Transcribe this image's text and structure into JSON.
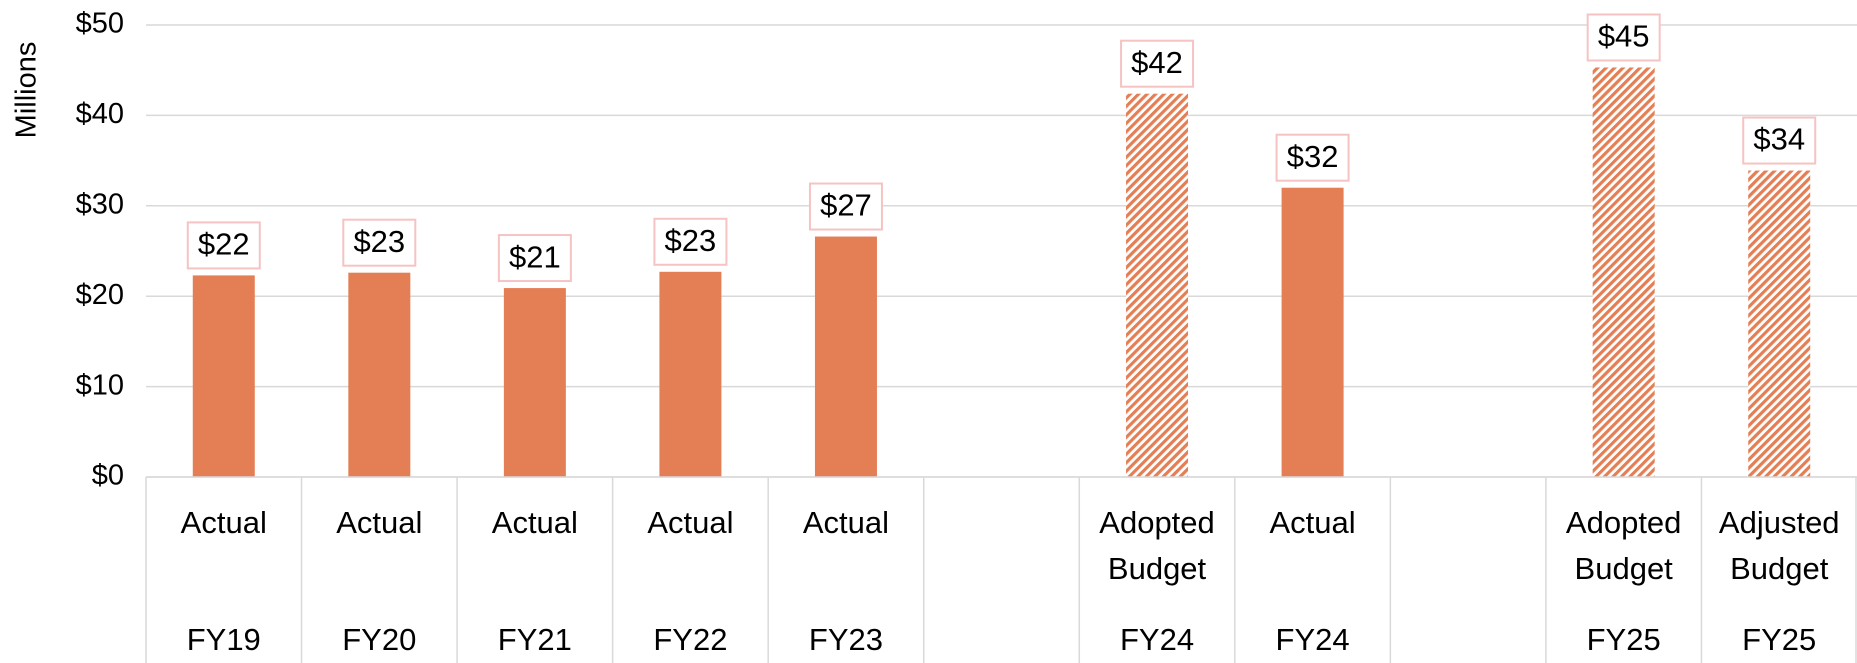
{
  "chart_data": {
    "type": "bar",
    "y_axis_label": "Millions",
    "categories": [
      [
        "Actual"
      ],
      [
        "Actual"
      ],
      [
        "Actual"
      ],
      [
        "Actual"
      ],
      [
        "Actual"
      ],
      null,
      [
        "Adopted",
        "Budget"
      ],
      [
        "Actual"
      ],
      null,
      [
        "Adopted",
        "Budget"
      ],
      [
        "Adjusted",
        "Budget"
      ]
    ],
    "category_groups": [
      "FY19",
      "FY20",
      "FY21",
      "FY22",
      "FY23",
      null,
      "FY24",
      "FY24",
      null,
      "FY25",
      "FY25"
    ],
    "values": [
      22.3,
      22.6,
      20.9,
      22.7,
      26.6,
      null,
      42.4,
      32.0,
      null,
      45.3,
      33.9
    ],
    "value_labels": [
      "$22",
      "$23",
      "$21",
      "$23",
      "$27",
      null,
      "$42",
      "$32",
      null,
      "$45",
      "$34"
    ],
    "hatched": [
      false,
      false,
      false,
      false,
      false,
      null,
      true,
      false,
      null,
      true,
      true
    ],
    "color": "#e47f55",
    "ylim": [
      0,
      50
    ],
    "yticks": [
      {
        "value": 0,
        "label": "$0"
      },
      {
        "value": 10,
        "label": "$10"
      },
      {
        "value": 20,
        "label": "$20"
      },
      {
        "value": 30,
        "label": "$30"
      },
      {
        "value": 40,
        "label": "$40"
      },
      {
        "value": 50,
        "label": "$50"
      }
    ],
    "grid": true
  }
}
